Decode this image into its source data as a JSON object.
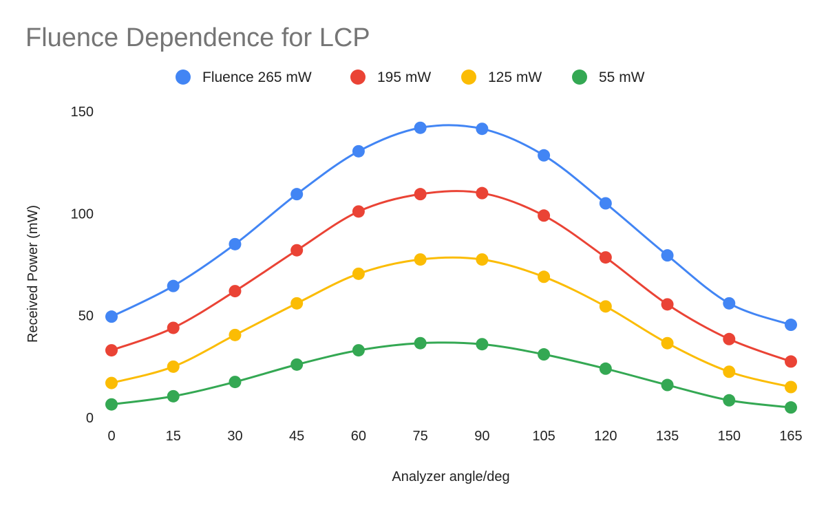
{
  "chart_data": {
    "type": "line",
    "title": "Fluence Dependence for LCP",
    "xlabel": "Analyzer angle/deg",
    "ylabel": "Received Power (mW)",
    "x": [
      0,
      15,
      30,
      45,
      60,
      75,
      90,
      105,
      120,
      135,
      150,
      165
    ],
    "xticks": [
      "0",
      "15",
      "30",
      "45",
      "60",
      "75",
      "90",
      "105",
      "120",
      "135",
      "150",
      "165"
    ],
    "yticks": [
      "0",
      "50",
      "100",
      "150"
    ],
    "ylim": [
      0,
      150
    ],
    "grid": false,
    "legend_position": "top",
    "smooth": true,
    "series": [
      {
        "name": "Fluence 265 mW",
        "color": "#4285f4",
        "values": [
          49.5,
          64.5,
          85,
          109.5,
          130.5,
          142,
          141.5,
          128.5,
          105,
          79.5,
          56,
          45.5
        ]
      },
      {
        "name": "195 mW",
        "color": "#ea4335",
        "values": [
          33,
          44,
          62,
          82,
          101,
          109.5,
          110,
          99,
          78.5,
          55.5,
          38.5,
          27.5
        ]
      },
      {
        "name": "125 mW",
        "color": "#fbbc04",
        "values": [
          17,
          25,
          40.5,
          56,
          70.5,
          77.5,
          77.5,
          69,
          54.5,
          36.5,
          22.5,
          15
        ]
      },
      {
        "name": "55 mW",
        "color": "#34a853",
        "values": [
          6.5,
          10.5,
          17.5,
          26,
          33,
          36.5,
          36,
          31,
          24,
          16,
          8.5,
          5
        ]
      }
    ]
  }
}
